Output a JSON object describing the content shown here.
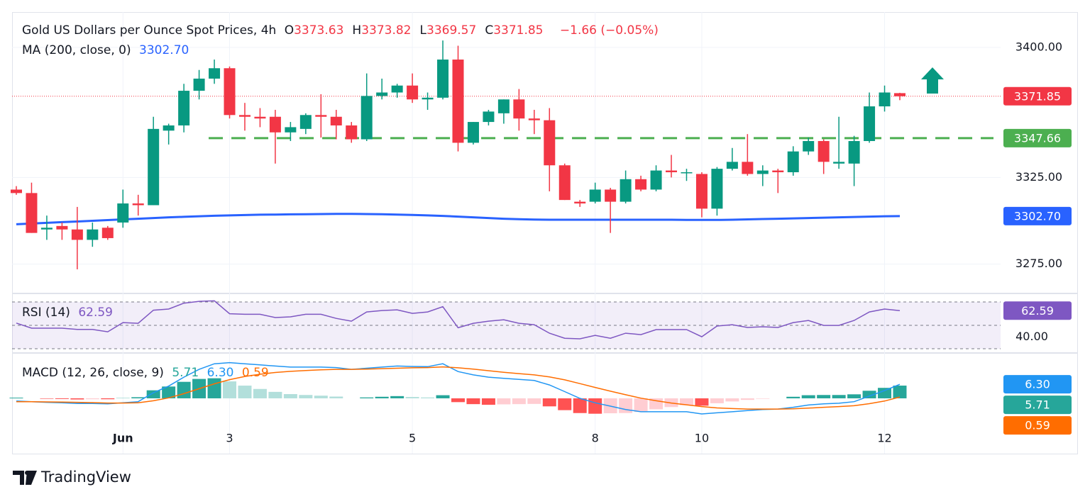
{
  "chart_data": {
    "type": "candlestick",
    "title": "Gold US Dollars per Ounce Spot Prices, 4h",
    "ohlc_letters": [
      "O",
      "H",
      "L",
      "C"
    ],
    "change": "−1.66 (−0.05%)",
    "up_color": "#089981",
    "down_color": "#f23645",
    "categories": [
      null,
      null,
      null,
      null,
      null,
      null,
      null,
      "Jun",
      null,
      null,
      null,
      null,
      null,
      null,
      "3",
      null,
      null,
      null,
      null,
      null,
      null,
      null,
      null,
      null,
      null,
      null,
      "5",
      null,
      null,
      null,
      null,
      null,
      null,
      null,
      null,
      null,
      null,
      null,
      "8",
      null,
      null,
      null,
      null,
      null,
      null,
      "10",
      null,
      null,
      null,
      null,
      null,
      null,
      null,
      null,
      null,
      null,
      null,
      "12",
      null
    ],
    "candles": [
      {
        "open": 3318,
        "high": 3320,
        "low": 3315,
        "close": 3316
      },
      {
        "open": 3316,
        "high": 3322,
        "low": 3293,
        "close": 3293
      },
      {
        "open": 3295,
        "high": 3303,
        "low": 3289,
        "close": 3296
      },
      {
        "open": 3297,
        "high": 3299,
        "low": 3289,
        "close": 3295
      },
      {
        "open": 3295,
        "high": 3308,
        "low": 3272,
        "close": 3289
      },
      {
        "open": 3289,
        "high": 3299,
        "low": 3285,
        "close": 3295
      },
      {
        "open": 3296,
        "high": 3297,
        "low": 3289,
        "close": 3290
      },
      {
        "open": 3299,
        "high": 3318,
        "low": 3296,
        "close": 3310
      },
      {
        "open": 3310,
        "high": 3315,
        "low": 3303,
        "close": 3309
      },
      {
        "open": 3309,
        "high": 3360,
        "low": 3309,
        "close": 3353
      },
      {
        "open": 3352,
        "high": 3356,
        "low": 3344,
        "close": 3355
      },
      {
        "open": 3355,
        "high": 3379,
        "low": 3351,
        "close": 3375
      },
      {
        "open": 3375,
        "high": 3387,
        "low": 3370,
        "close": 3382
      },
      {
        "open": 3382,
        "high": 3393,
        "low": 3379,
        "close": 3388
      },
      {
        "open": 3388,
        "high": 3389,
        "low": 3359,
        "close": 3361
      },
      {
        "open": 3361,
        "high": 3368,
        "low": 3352,
        "close": 3360
      },
      {
        "open": 3360,
        "high": 3365,
        "low": 3354,
        "close": 3359
      },
      {
        "open": 3360,
        "high": 3364,
        "low": 3333,
        "close": 3351
      },
      {
        "open": 3351,
        "high": 3357,
        "low": 3346,
        "close": 3354
      },
      {
        "open": 3353,
        "high": 3362,
        "low": 3350,
        "close": 3361
      },
      {
        "open": 3361,
        "high": 3373,
        "low": 3348,
        "close": 3360
      },
      {
        "open": 3360,
        "high": 3364,
        "low": 3347,
        "close": 3355
      },
      {
        "open": 3355,
        "high": 3357,
        "low": 3345,
        "close": 3347
      },
      {
        "open": 3347,
        "high": 3385,
        "low": 3346,
        "close": 3372
      },
      {
        "open": 3372,
        "high": 3382,
        "low": 3370,
        "close": 3374
      },
      {
        "open": 3374,
        "high": 3379,
        "low": 3371,
        "close": 3378
      },
      {
        "open": 3378,
        "high": 3385,
        "low": 3368,
        "close": 3370
      },
      {
        "open": 3370,
        "high": 3374,
        "low": 3364,
        "close": 3371
      },
      {
        "open": 3371,
        "high": 3404,
        "low": 3370,
        "close": 3393
      },
      {
        "open": 3393,
        "high": 3401,
        "low": 3340,
        "close": 3345
      },
      {
        "open": 3345,
        "high": 3357,
        "low": 3344,
        "close": 3357
      },
      {
        "open": 3357,
        "high": 3364,
        "low": 3355,
        "close": 3363
      },
      {
        "open": 3362,
        "high": 3370,
        "low": 3356,
        "close": 3370
      },
      {
        "open": 3370,
        "high": 3376,
        "low": 3352,
        "close": 3359
      },
      {
        "open": 3359,
        "high": 3364,
        "low": 3350,
        "close": 3358
      },
      {
        "open": 3358,
        "high": 3365,
        "low": 3317,
        "close": 3332
      },
      {
        "open": 3332,
        "high": 3333,
        "low": 3312,
        "close": 3312
      },
      {
        "open": 3311,
        "high": 3312,
        "low": 3308,
        "close": 3310
      },
      {
        "open": 3311,
        "high": 3322,
        "low": 3310,
        "close": 3318
      },
      {
        "open": 3318,
        "high": 3319,
        "low": 3293,
        "close": 3311
      },
      {
        "open": 3311,
        "high": 3329,
        "low": 3310,
        "close": 3324
      },
      {
        "open": 3324,
        "high": 3326,
        "low": 3317,
        "close": 3318
      },
      {
        "open": 3318,
        "high": 3332,
        "low": 3317,
        "close": 3329
      },
      {
        "open": 3329,
        "high": 3338,
        "low": 3325,
        "close": 3328
      },
      {
        "open": 3328,
        "high": 3330,
        "low": 3323,
        "close": 3328
      },
      {
        "open": 3327,
        "high": 3328,
        "low": 3302,
        "close": 3307
      },
      {
        "open": 3307,
        "high": 3331,
        "low": 3303,
        "close": 3330
      },
      {
        "open": 3330,
        "high": 3342,
        "low": 3329,
        "close": 3334
      },
      {
        "open": 3334,
        "high": 3350,
        "low": 3326,
        "close": 3327
      },
      {
        "open": 3327,
        "high": 3332,
        "low": 3320,
        "close": 3329
      },
      {
        "open": 3329,
        "high": 3330,
        "low": 3316,
        "close": 3328
      },
      {
        "open": 3328,
        "high": 3343,
        "low": 3326,
        "close": 3340
      },
      {
        "open": 3340,
        "high": 3348,
        "low": 3338,
        "close": 3346
      },
      {
        "open": 3346,
        "high": 3347,
        "low": 3327,
        "close": 3334
      },
      {
        "open": 3333,
        "high": 3360,
        "low": 3330,
        "close": 3334
      },
      {
        "open": 3333,
        "high": 3349,
        "low": 3320,
        "close": 3346
      },
      {
        "open": 3346,
        "high": 3374,
        "low": 3345,
        "close": 3366
      },
      {
        "open": 3366,
        "high": 3378,
        "low": 3363,
        "close": 3374
      },
      {
        "open": 3373.63,
        "high": 3373.82,
        "low": 3369.57,
        "close": 3371.85
      }
    ],
    "ylim": [
      3258.5,
      3420.4
    ],
    "yticks": [
      {
        "value": 3400,
        "label": "3400.00"
      },
      {
        "value": 3325,
        "label": "3325.00"
      },
      {
        "value": 3275,
        "label": "3275.00"
      }
    ],
    "grid": true,
    "level": 3347.66,
    "level_color": "#4caf50",
    "ma": {
      "name": "MA (200, close, 0)",
      "color": "#2962ff",
      "values": [
        3298,
        3298.4,
        3298.8,
        3299.2,
        3299.6,
        3300,
        3300.4,
        3300.8,
        3301.2,
        3301.6,
        3302,
        3302.3,
        3302.6,
        3302.9,
        3303.1,
        3303.3,
        3303.5,
        3303.6,
        3303.7,
        3303.8,
        3303.9,
        3304,
        3304,
        3303.9,
        3303.8,
        3303.6,
        3303.4,
        3303.1,
        3302.8,
        3302.4,
        3302,
        3301.6,
        3301.2,
        3300.9,
        3300.7,
        3300.6,
        3300.6,
        3300.6,
        3300.6,
        3300.6,
        3300.6,
        3300.6,
        3300.6,
        3300.6,
        3300.5,
        3300.5,
        3300.5,
        3300.6,
        3300.8,
        3301,
        3301.2,
        3301.4,
        3301.6,
        3301.8,
        3302,
        3302.2,
        3302.4,
        3302.6,
        3302.7
      ],
      "value_labels": [
        null,
        null,
        null,
        null,
        null,
        null,
        null,
        null,
        null,
        null,
        null,
        null,
        null,
        null,
        null,
        null,
        null,
        null,
        null,
        null,
        null,
        null,
        null,
        null,
        null,
        null,
        null,
        null,
        null,
        null,
        null,
        null,
        null,
        null,
        null,
        null,
        null,
        null,
        null,
        null,
        null,
        null,
        null,
        null,
        null,
        null,
        null,
        null,
        null,
        null,
        null,
        null,
        null,
        null,
        null,
        null,
        null,
        null,
        "3302.70"
      ]
    },
    "rsi": {
      "name": "RSI (14)",
      "color": "#7e57c2",
      "ylim": [
        27,
        76.7
      ],
      "levels": [
        70,
        50,
        30
      ],
      "yticks": [
        {
          "value": 40,
          "label": "40.00"
        }
      ],
      "values": [
        52,
        47.6,
        47.6,
        47.6,
        46.5,
        46.5,
        44.5,
        52.4,
        51.8,
        63,
        64,
        69,
        70.6,
        71,
        60,
        59.5,
        59.5,
        56.7,
        57.3,
        59.5,
        59.5,
        56,
        53.6,
        61.5,
        62.7,
        63.3,
        60.3,
        61.5,
        66,
        48,
        51.8,
        53.6,
        54.8,
        51.8,
        50.6,
        43.3,
        39,
        38.5,
        41.5,
        39,
        43.3,
        42.1,
        46.4,
        46.4,
        46.4,
        40.3,
        49.4,
        50.6,
        48.2,
        48.8,
        48.2,
        52.4,
        54.2,
        50,
        50,
        54.2,
        61.5,
        64,
        62.59
      ]
    },
    "macd": {
      "name": "MACD (12, 26, close, 9)",
      "ylim": [
        -24.8,
        19.7
      ],
      "histogram": {
        "colors": [
          "#26a69a",
          "#b2dfdb",
          "#ff5252",
          "#ffcdd2"
        ],
        "label_color": "#26a69a",
        "values": [
          0.3,
          0,
          -0.2,
          -0.3,
          -0.5,
          -0.4,
          -0.4,
          0.1,
          0.5,
          3.6,
          5.3,
          7.4,
          8.7,
          9,
          7.6,
          5.7,
          4.2,
          2.9,
          1.9,
          1.5,
          1.2,
          0.8,
          0,
          0.4,
          0.7,
          1,
          0.6,
          0.4,
          1.4,
          -1.7,
          -2.6,
          -2.9,
          -2.7,
          -2.6,
          -2.5,
          -3.6,
          -5.3,
          -6.6,
          -6.9,
          -6.7,
          -6.6,
          -6.1,
          -4.9,
          -3.9,
          -3.1,
          -3.3,
          -2.2,
          -1.4,
          -0.7,
          -0.2,
          0,
          0.7,
          1.4,
          1.5,
          1.5,
          1.8,
          3.4,
          4.7,
          5.71
        ]
      },
      "series": [
        {
          "color": "#2196f3",
          "values": [
            -1.2,
            -1.5,
            -1.8,
            -2.0,
            -2.3,
            -2.3,
            -2.5,
            -2.0,
            -1.5,
            2.5,
            5.5,
            9.5,
            13,
            15.5,
            16,
            15.5,
            15,
            14.5,
            14,
            14,
            14,
            13.8,
            13,
            13.5,
            14,
            14.5,
            14.3,
            14.2,
            15.5,
            12,
            10.5,
            9.5,
            9,
            8.5,
            8,
            6,
            3,
            0,
            -2,
            -3.5,
            -5,
            -6,
            -6,
            -6,
            -6,
            -7,
            -6.5,
            -6,
            -5.5,
            -5,
            -4.8,
            -4,
            -3,
            -2.5,
            -2.2,
            -1.5,
            1,
            3.5,
            6.3
          ],
          "value_labels": [
            null,
            null,
            null,
            null,
            null,
            null,
            null,
            null,
            null,
            null,
            null,
            null,
            null,
            null,
            null,
            null,
            null,
            null,
            null,
            null,
            null,
            null,
            null,
            null,
            null,
            null,
            null,
            null,
            null,
            null,
            null,
            null,
            null,
            null,
            null,
            null,
            null,
            null,
            null,
            null,
            null,
            null,
            null,
            null,
            null,
            null,
            null,
            null,
            null,
            null,
            null,
            null,
            null,
            null,
            null,
            null,
            null,
            null,
            "6.30"
          ]
        },
        {
          "color": "#ff6d00",
          "values": [
            -1.5,
            -1.5,
            -1.6,
            -1.7,
            -1.8,
            -1.9,
            -2.1,
            -2.1,
            -2.0,
            -1.1,
            0.2,
            2.1,
            4.3,
            6.5,
            8.4,
            9.8,
            10.8,
            11.6,
            12.1,
            12.5,
            12.8,
            13,
            13,
            13.1,
            13.3,
            13.5,
            13.7,
            13.8,
            14.1,
            13.7,
            13.1,
            12.4,
            11.7,
            11.1,
            10.5,
            9.6,
            8.3,
            6.6,
            4.9,
            3.2,
            1.6,
            0.1,
            -1.1,
            -2.1,
            -2.9,
            -3.7,
            -4.3,
            -4.6,
            -4.8,
            -4.8,
            -4.8,
            -4.7,
            -4.4,
            -4.0,
            -3.7,
            -3.3,
            -2.4,
            -1.2,
            0.59
          ]
        }
      ]
    },
    "brand": "TradingView"
  }
}
